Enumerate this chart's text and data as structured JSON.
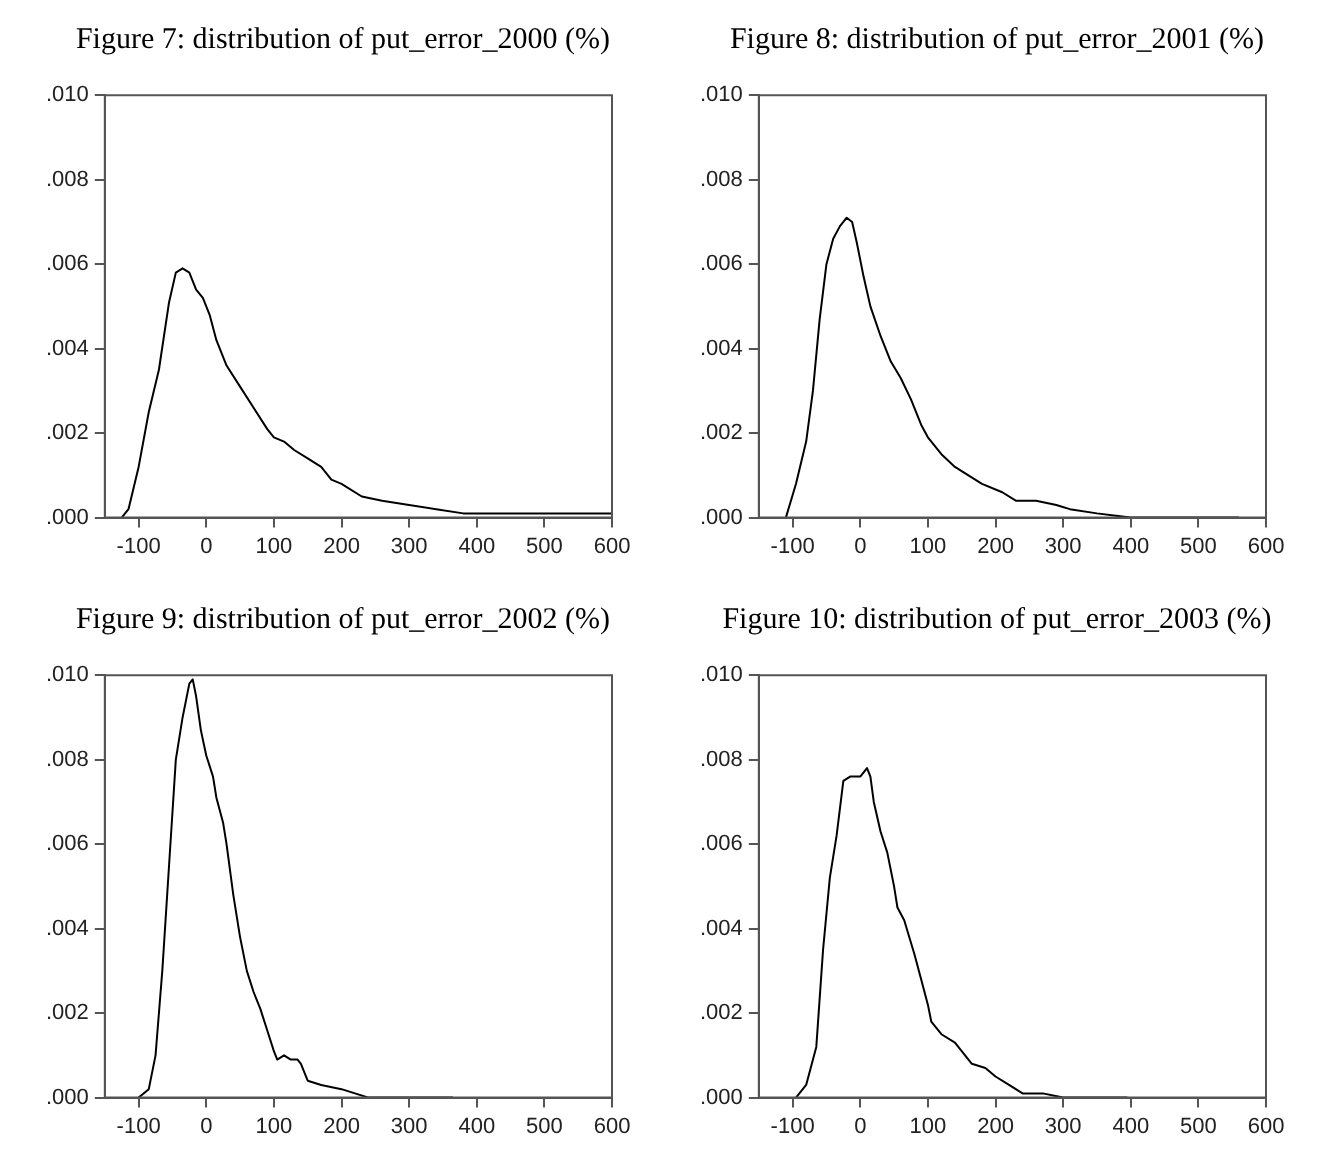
{
  "chart_data": [
    {
      "type": "line",
      "title": "Figure 7: distribution of put_error_2000 (%)",
      "marker": "none",
      "grid": false,
      "color": "#000000",
      "xlim": [
        -150,
        600
      ],
      "xticks": [
        -100,
        0,
        100,
        200,
        300,
        400,
        500,
        600
      ],
      "ylim": [
        0,
        0.01
      ],
      "yticks": [
        {
          "value": 0,
          "label": ".000"
        },
        {
          "value": 0.002,
          "label": ".002"
        },
        {
          "value": 0.004,
          "label": ".004"
        },
        {
          "value": 0.006,
          "label": ".006"
        },
        {
          "value": 0.008,
          "label": ".008"
        },
        {
          "value": 0.01,
          "label": ".010"
        }
      ],
      "x": [
        -125,
        -115,
        -100,
        -85,
        -70,
        -55,
        -45,
        -35,
        -25,
        -15,
        -5,
        5,
        15,
        30,
        50,
        70,
        90,
        100,
        115,
        130,
        150,
        170,
        185,
        200,
        230,
        260,
        300,
        340,
        380,
        400,
        450,
        500,
        530,
        560,
        600
      ],
      "values": [
        0,
        0.0002,
        0.0012,
        0.0025,
        0.0035,
        0.0051,
        0.0058,
        0.0059,
        0.0058,
        0.0054,
        0.0052,
        0.0048,
        0.0042,
        0.0036,
        0.0031,
        0.0026,
        0.0021,
        0.0019,
        0.0018,
        0.0016,
        0.0014,
        0.0012,
        0.0009,
        0.0008,
        0.0005,
        0.0004,
        0.0003,
        0.0002,
        0.0001,
        0.0001,
        0.0001,
        0.0001,
        0.0001,
        0.0001,
        0.0001
      ]
    },
    {
      "type": "line",
      "title": "Figure 8: distribution of put_error_2001 (%)",
      "marker": "none",
      "grid": false,
      "color": "#000000",
      "xlim": [
        -150,
        600
      ],
      "xticks": [
        -100,
        0,
        100,
        200,
        300,
        400,
        500,
        600
      ],
      "ylim": [
        0,
        0.01
      ],
      "yticks": [
        {
          "value": 0,
          "label": ".000"
        },
        {
          "value": 0.002,
          "label": ".002"
        },
        {
          "value": 0.004,
          "label": ".004"
        },
        {
          "value": 0.006,
          "label": ".006"
        },
        {
          "value": 0.008,
          "label": ".008"
        },
        {
          "value": 0.01,
          "label": ".010"
        }
      ],
      "x": [
        -110,
        -95,
        -80,
        -70,
        -60,
        -50,
        -40,
        -30,
        -20,
        -12,
        -5,
        5,
        15,
        30,
        45,
        60,
        75,
        90,
        100,
        120,
        140,
        160,
        180,
        210,
        230,
        260,
        290,
        310,
        350,
        400,
        450,
        500,
        560
      ],
      "values": [
        0,
        0.0008,
        0.0018,
        0.003,
        0.0047,
        0.006,
        0.0066,
        0.0069,
        0.0071,
        0.007,
        0.0065,
        0.0057,
        0.005,
        0.0043,
        0.0037,
        0.0033,
        0.0028,
        0.0022,
        0.0019,
        0.0015,
        0.0012,
        0.001,
        0.0008,
        0.0006,
        0.0004,
        0.0004,
        0.0003,
        0.0002,
        0.0001,
        0,
        0,
        0,
        0
      ]
    },
    {
      "type": "line",
      "title": "Figure 9: distribution of put_error_2002 (%)",
      "marker": "none",
      "grid": false,
      "color": "#000000",
      "xlim": [
        -150,
        600
      ],
      "xticks": [
        -100,
        0,
        100,
        200,
        300,
        400,
        500,
        600
      ],
      "ylim": [
        0,
        0.01
      ],
      "yticks": [
        {
          "value": 0,
          "label": ".000"
        },
        {
          "value": 0.002,
          "label": ".002"
        },
        {
          "value": 0.004,
          "label": ".004"
        },
        {
          "value": 0.006,
          "label": ".006"
        },
        {
          "value": 0.008,
          "label": ".008"
        },
        {
          "value": 0.01,
          "label": ".010"
        }
      ],
      "x": [
        -100,
        -85,
        -75,
        -65,
        -55,
        -45,
        -35,
        -25,
        -20,
        -15,
        -8,
        0,
        10,
        15,
        25,
        30,
        40,
        50,
        60,
        70,
        80,
        90,
        100,
        105,
        115,
        125,
        135,
        140,
        150,
        170,
        200,
        240,
        300,
        365
      ],
      "values": [
        0,
        0.0002,
        0.001,
        0.003,
        0.0055,
        0.008,
        0.009,
        0.0098,
        0.0099,
        0.0095,
        0.0087,
        0.0081,
        0.0076,
        0.0071,
        0.0065,
        0.006,
        0.0048,
        0.0038,
        0.003,
        0.0025,
        0.0021,
        0.0016,
        0.0011,
        0.0009,
        0.001,
        0.0009,
        0.0009,
        0.0008,
        0.0004,
        0.0003,
        0.0002,
        0,
        0,
        0
      ]
    },
    {
      "type": "line",
      "title": "Figure 10: distribution of put_error_2003 (%)",
      "marker": "none",
      "grid": false,
      "color": "#000000",
      "xlim": [
        -150,
        600
      ],
      "xticks": [
        -100,
        0,
        100,
        200,
        300,
        400,
        500,
        600
      ],
      "ylim": [
        0,
        0.01
      ],
      "yticks": [
        {
          "value": 0,
          "label": ".000"
        },
        {
          "value": 0.002,
          "label": ".002"
        },
        {
          "value": 0.004,
          "label": ".004"
        },
        {
          "value": 0.006,
          "label": ".006"
        },
        {
          "value": 0.008,
          "label": ".008"
        },
        {
          "value": 0.01,
          "label": ".010"
        }
      ],
      "x": [
        -95,
        -80,
        -65,
        -55,
        -45,
        -35,
        -25,
        -15,
        -5,
        0,
        10,
        15,
        20,
        30,
        40,
        50,
        55,
        65,
        80,
        90,
        100,
        105,
        120,
        140,
        150,
        165,
        185,
        200,
        220,
        240,
        270,
        300,
        350,
        390,
        395
      ],
      "values": [
        0,
        0.0003,
        0.0012,
        0.0035,
        0.0052,
        0.0062,
        0.0075,
        0.0076,
        0.0076,
        0.0076,
        0.0078,
        0.0076,
        0.007,
        0.0063,
        0.0058,
        0.005,
        0.0045,
        0.0042,
        0.0034,
        0.0028,
        0.0022,
        0.0018,
        0.0015,
        0.0013,
        0.0011,
        0.0008,
        0.0007,
        0.0005,
        0.0003,
        0.0001,
        0.0001,
        0,
        0,
        0,
        0
      ]
    }
  ]
}
